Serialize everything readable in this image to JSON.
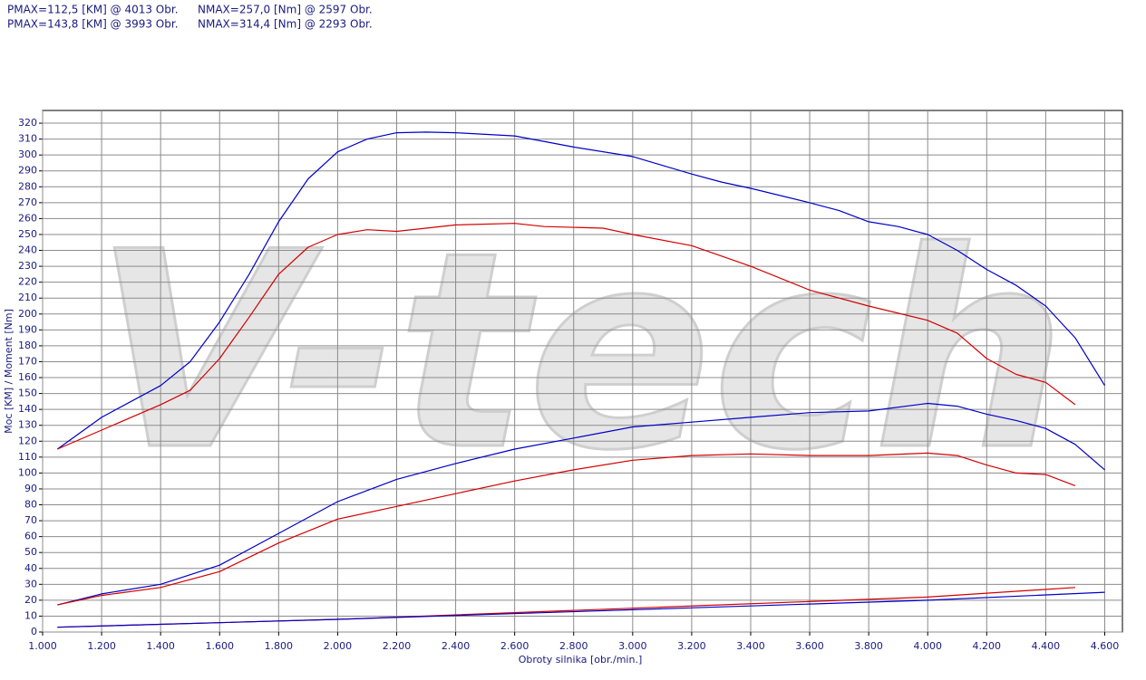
{
  "chart_data": {
    "type": "line",
    "annotations": [
      "PMAX=112,5 [KM] @ 4013 Obr.",
      "NMAX=257,0 [Nm] @ 2597 Obr.",
      "PMAX=143,8 [KM] @ 3993 Obr.",
      "NMAX=314,4 [Nm] @ 2293 Obr."
    ],
    "watermark": "V-tech",
    "x_label": "Obroty silnika [obr./min.]",
    "y_label": "Moc [KM] / Moment [Nm]",
    "xlim": [
      1000,
      4660
    ],
    "ylim": [
      0,
      328
    ],
    "xticks": [
      {
        "value": 1000,
        "label": "1.000"
      },
      {
        "value": 1200,
        "label": "1.200"
      },
      {
        "value": 1400,
        "label": "1.400"
      },
      {
        "value": 1600,
        "label": "1.600"
      },
      {
        "value": 1800,
        "label": "1.800"
      },
      {
        "value": 2000,
        "label": "2.000"
      },
      {
        "value": 2200,
        "label": "2.200"
      },
      {
        "value": 2400,
        "label": "2.400"
      },
      {
        "value": 2600,
        "label": "2.600"
      },
      {
        "value": 2800,
        "label": "2.800"
      },
      {
        "value": 3000,
        "label": "3.000"
      },
      {
        "value": 3200,
        "label": "3.200"
      },
      {
        "value": 3400,
        "label": "3.400"
      },
      {
        "value": 3600,
        "label": "3.600"
      },
      {
        "value": 3800,
        "label": "3.800"
      },
      {
        "value": 4000,
        "label": "4.000"
      },
      {
        "value": 4200,
        "label": "4.200"
      },
      {
        "value": 4400,
        "label": "4.400"
      },
      {
        "value": 4600,
        "label": "4.600"
      }
    ],
    "yticks": [
      0,
      10,
      20,
      30,
      40,
      50,
      60,
      70,
      80,
      90,
      100,
      110,
      120,
      130,
      140,
      150,
      160,
      170,
      180,
      190,
      200,
      210,
      220,
      230,
      240,
      250,
      260,
      270,
      280,
      290,
      300,
      310,
      320
    ],
    "grid": true,
    "series": [
      {
        "color": "#0000c8",
        "x": [
          1050,
          1200,
          1400,
          1500,
          1600,
          1700,
          1800,
          1900,
          2000,
          2100,
          2200,
          2300,
          2400,
          2600,
          2800,
          3000,
          3200,
          3300,
          3400,
          3600,
          3700,
          3800,
          3900,
          4000,
          4100,
          4200,
          4300,
          4400,
          4500,
          4600
        ],
        "values": [
          115,
          135,
          155,
          170,
          195,
          225,
          258,
          285,
          302,
          310,
          314,
          314.4,
          314,
          312,
          305,
          299,
          288,
          283,
          279,
          270,
          265,
          258,
          255,
          250,
          240,
          228,
          218,
          205,
          185,
          155
        ]
      },
      {
        "color": "#d40000",
        "x": [
          1050,
          1200,
          1400,
          1500,
          1600,
          1700,
          1800,
          1900,
          2000,
          2100,
          2200,
          2300,
          2400,
          2600,
          2700,
          2900,
          3000,
          3200,
          3400,
          3600,
          3800,
          4000,
          4100,
          4200,
          4300,
          4400,
          4500
        ],
        "values": [
          115,
          127,
          143,
          152,
          172,
          198,
          225,
          242,
          250,
          253,
          252,
          254,
          256,
          257,
          255,
          254,
          250,
          243,
          230,
          215,
          205,
          196,
          188,
          172,
          162,
          157,
          143
        ]
      },
      {
        "color": "#0000c8",
        "x": [
          1050,
          1200,
          1400,
          1600,
          1800,
          2000,
          2200,
          2400,
          2600,
          2800,
          3000,
          3200,
          3400,
          3600,
          3800,
          4000,
          4100,
          4200,
          4300,
          4400,
          4500,
          4600
        ],
        "values": [
          17,
          24,
          30,
          42,
          62,
          82,
          96,
          106,
          115,
          122,
          129,
          132,
          135,
          138,
          139,
          143.8,
          142,
          137,
          133,
          128,
          118,
          102
        ]
      },
      {
        "color": "#d40000",
        "x": [
          1050,
          1200,
          1400,
          1600,
          1800,
          2000,
          2200,
          2400,
          2600,
          2800,
          3000,
          3200,
          3400,
          3600,
          3800,
          4000,
          4100,
          4200,
          4300,
          4400,
          4500
        ],
        "values": [
          17,
          23,
          28,
          38,
          56,
          71,
          79,
          87,
          95,
          102,
          108,
          111,
          112,
          111,
          111,
          112.5,
          111,
          105,
          100,
          99,
          92
        ]
      },
      {
        "color": "#d40000",
        "x": [
          1050,
          2000,
          3000,
          4000,
          4500
        ],
        "values": [
          3,
          8,
          15,
          22,
          28
        ]
      },
      {
        "color": "#0000c8",
        "x": [
          1050,
          2000,
          3000,
          4000,
          4600
        ],
        "values": [
          3,
          8,
          14,
          20,
          25
        ]
      }
    ]
  }
}
